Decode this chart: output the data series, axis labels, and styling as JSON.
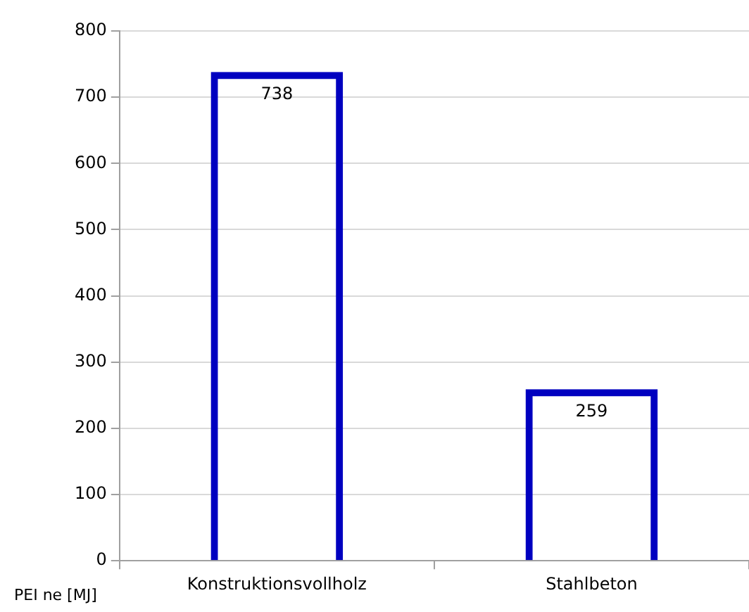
{
  "chart_data": {
    "type": "bar",
    "ylabel": "PEI ne [MJ]",
    "categories": [
      "Konstruktionsvollholz",
      "Stahlbeton"
    ],
    "values": [
      738,
      259
    ],
    "color": "#0000c0",
    "ylim": [
      0,
      800
    ],
    "yticks": [
      0,
      100,
      200,
      300,
      400,
      500,
      600,
      700,
      800
    ],
    "grid": "y",
    "data_labels": true,
    "legend": false
  }
}
